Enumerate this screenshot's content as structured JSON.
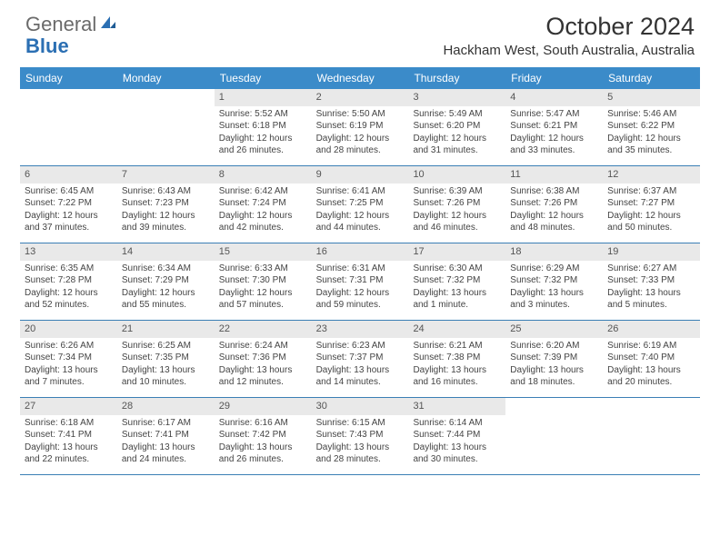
{
  "logo": {
    "text1": "General",
    "text2": "Blue"
  },
  "title": "October 2024",
  "location": "Hackham West, South Australia, Australia",
  "day_headers": [
    "Sunday",
    "Monday",
    "Tuesday",
    "Wednesday",
    "Thursday",
    "Friday",
    "Saturday"
  ],
  "colors": {
    "header_bg": "#3b8bc9",
    "header_text": "#ffffff",
    "daynum_bg": "#e9e9e9",
    "week_border": "#3b7fb5"
  },
  "weeks": [
    [
      {
        "empty": true
      },
      {
        "empty": true
      },
      {
        "num": "1",
        "sunrise": "Sunrise: 5:52 AM",
        "sunset": "Sunset: 6:18 PM",
        "daylight": "Daylight: 12 hours and 26 minutes."
      },
      {
        "num": "2",
        "sunrise": "Sunrise: 5:50 AM",
        "sunset": "Sunset: 6:19 PM",
        "daylight": "Daylight: 12 hours and 28 minutes."
      },
      {
        "num": "3",
        "sunrise": "Sunrise: 5:49 AM",
        "sunset": "Sunset: 6:20 PM",
        "daylight": "Daylight: 12 hours and 31 minutes."
      },
      {
        "num": "4",
        "sunrise": "Sunrise: 5:47 AM",
        "sunset": "Sunset: 6:21 PM",
        "daylight": "Daylight: 12 hours and 33 minutes."
      },
      {
        "num": "5",
        "sunrise": "Sunrise: 5:46 AM",
        "sunset": "Sunset: 6:22 PM",
        "daylight": "Daylight: 12 hours and 35 minutes."
      }
    ],
    [
      {
        "num": "6",
        "sunrise": "Sunrise: 6:45 AM",
        "sunset": "Sunset: 7:22 PM",
        "daylight": "Daylight: 12 hours and 37 minutes."
      },
      {
        "num": "7",
        "sunrise": "Sunrise: 6:43 AM",
        "sunset": "Sunset: 7:23 PM",
        "daylight": "Daylight: 12 hours and 39 minutes."
      },
      {
        "num": "8",
        "sunrise": "Sunrise: 6:42 AM",
        "sunset": "Sunset: 7:24 PM",
        "daylight": "Daylight: 12 hours and 42 minutes."
      },
      {
        "num": "9",
        "sunrise": "Sunrise: 6:41 AM",
        "sunset": "Sunset: 7:25 PM",
        "daylight": "Daylight: 12 hours and 44 minutes."
      },
      {
        "num": "10",
        "sunrise": "Sunrise: 6:39 AM",
        "sunset": "Sunset: 7:26 PM",
        "daylight": "Daylight: 12 hours and 46 minutes."
      },
      {
        "num": "11",
        "sunrise": "Sunrise: 6:38 AM",
        "sunset": "Sunset: 7:26 PM",
        "daylight": "Daylight: 12 hours and 48 minutes."
      },
      {
        "num": "12",
        "sunrise": "Sunrise: 6:37 AM",
        "sunset": "Sunset: 7:27 PM",
        "daylight": "Daylight: 12 hours and 50 minutes."
      }
    ],
    [
      {
        "num": "13",
        "sunrise": "Sunrise: 6:35 AM",
        "sunset": "Sunset: 7:28 PM",
        "daylight": "Daylight: 12 hours and 52 minutes."
      },
      {
        "num": "14",
        "sunrise": "Sunrise: 6:34 AM",
        "sunset": "Sunset: 7:29 PM",
        "daylight": "Daylight: 12 hours and 55 minutes."
      },
      {
        "num": "15",
        "sunrise": "Sunrise: 6:33 AM",
        "sunset": "Sunset: 7:30 PM",
        "daylight": "Daylight: 12 hours and 57 minutes."
      },
      {
        "num": "16",
        "sunrise": "Sunrise: 6:31 AM",
        "sunset": "Sunset: 7:31 PM",
        "daylight": "Daylight: 12 hours and 59 minutes."
      },
      {
        "num": "17",
        "sunrise": "Sunrise: 6:30 AM",
        "sunset": "Sunset: 7:32 PM",
        "daylight": "Daylight: 13 hours and 1 minute."
      },
      {
        "num": "18",
        "sunrise": "Sunrise: 6:29 AM",
        "sunset": "Sunset: 7:32 PM",
        "daylight": "Daylight: 13 hours and 3 minutes."
      },
      {
        "num": "19",
        "sunrise": "Sunrise: 6:27 AM",
        "sunset": "Sunset: 7:33 PM",
        "daylight": "Daylight: 13 hours and 5 minutes."
      }
    ],
    [
      {
        "num": "20",
        "sunrise": "Sunrise: 6:26 AM",
        "sunset": "Sunset: 7:34 PM",
        "daylight": "Daylight: 13 hours and 7 minutes."
      },
      {
        "num": "21",
        "sunrise": "Sunrise: 6:25 AM",
        "sunset": "Sunset: 7:35 PM",
        "daylight": "Daylight: 13 hours and 10 minutes."
      },
      {
        "num": "22",
        "sunrise": "Sunrise: 6:24 AM",
        "sunset": "Sunset: 7:36 PM",
        "daylight": "Daylight: 13 hours and 12 minutes."
      },
      {
        "num": "23",
        "sunrise": "Sunrise: 6:23 AM",
        "sunset": "Sunset: 7:37 PM",
        "daylight": "Daylight: 13 hours and 14 minutes."
      },
      {
        "num": "24",
        "sunrise": "Sunrise: 6:21 AM",
        "sunset": "Sunset: 7:38 PM",
        "daylight": "Daylight: 13 hours and 16 minutes."
      },
      {
        "num": "25",
        "sunrise": "Sunrise: 6:20 AM",
        "sunset": "Sunset: 7:39 PM",
        "daylight": "Daylight: 13 hours and 18 minutes."
      },
      {
        "num": "26",
        "sunrise": "Sunrise: 6:19 AM",
        "sunset": "Sunset: 7:40 PM",
        "daylight": "Daylight: 13 hours and 20 minutes."
      }
    ],
    [
      {
        "num": "27",
        "sunrise": "Sunrise: 6:18 AM",
        "sunset": "Sunset: 7:41 PM",
        "daylight": "Daylight: 13 hours and 22 minutes."
      },
      {
        "num": "28",
        "sunrise": "Sunrise: 6:17 AM",
        "sunset": "Sunset: 7:41 PM",
        "daylight": "Daylight: 13 hours and 24 minutes."
      },
      {
        "num": "29",
        "sunrise": "Sunrise: 6:16 AM",
        "sunset": "Sunset: 7:42 PM",
        "daylight": "Daylight: 13 hours and 26 minutes."
      },
      {
        "num": "30",
        "sunrise": "Sunrise: 6:15 AM",
        "sunset": "Sunset: 7:43 PM",
        "daylight": "Daylight: 13 hours and 28 minutes."
      },
      {
        "num": "31",
        "sunrise": "Sunrise: 6:14 AM",
        "sunset": "Sunset: 7:44 PM",
        "daylight": "Daylight: 13 hours and 30 minutes."
      },
      {
        "empty": true
      },
      {
        "empty": true
      }
    ]
  ]
}
